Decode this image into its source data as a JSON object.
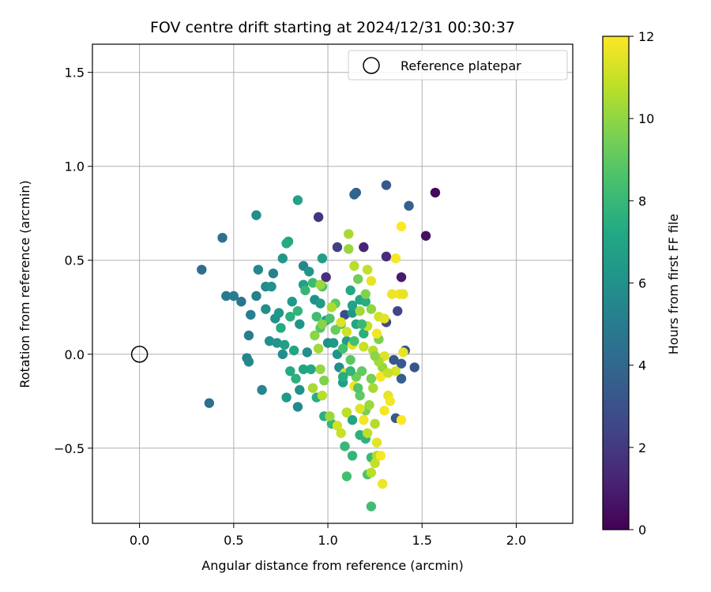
{
  "chart_data": {
    "type": "scatter",
    "title": "FOV centre drift starting at 2024/12/31 00:30:37",
    "xlabel": "Angular distance from reference (arcmin)",
    "ylabel": "Rotation from reference (arcmin)",
    "xlim": [
      -0.25,
      2.3
    ],
    "ylim": [
      -0.9,
      1.65
    ],
    "xticks": [
      0.0,
      0.5,
      1.0,
      1.5,
      2.0
    ],
    "xtick_labels": [
      "0.0",
      "0.5",
      "1.0",
      "1.5",
      "2.0"
    ],
    "yticks": [
      -0.5,
      0.0,
      0.5,
      1.0,
      1.5
    ],
    "ytick_labels": [
      "−0.5",
      "0.0",
      "0.5",
      "1.0",
      "1.5"
    ],
    "grid": true,
    "legend": {
      "position": "top-right",
      "entries": [
        "Reference platepar"
      ]
    },
    "reference_point": {
      "x": 0.0,
      "y": 0.0,
      "marker": "open-circle"
    },
    "colorbar": {
      "label": "Hours from first FF file",
      "range": [
        0,
        12
      ],
      "ticks": [
        0,
        2,
        4,
        6,
        8,
        10,
        12
      ],
      "tick_labels": [
        "0",
        "2",
        "4",
        "6",
        "8",
        "10",
        "12"
      ],
      "colormap": "viridis"
    },
    "points": [
      [
        1.57,
        0.86,
        0.2
      ],
      [
        1.52,
        0.63,
        0.5
      ],
      [
        1.19,
        0.57,
        1.2
      ],
      [
        0.95,
        0.73,
        1.8
      ],
      [
        1.05,
        0.57,
        2.2
      ],
      [
        1.31,
        0.52,
        1.5
      ],
      [
        1.39,
        0.41,
        0.9
      ],
      [
        0.99,
        0.41,
        1.6
      ],
      [
        1.37,
        0.23,
        2.5
      ],
      [
        1.09,
        0.21,
        2.8
      ],
      [
        1.31,
        0.17,
        2.6
      ],
      [
        1.41,
        0.02,
        3.0
      ],
      [
        1.35,
        -0.03,
        3.2
      ],
      [
        1.39,
        -0.05,
        3.4
      ],
      [
        1.46,
        -0.07,
        3.1
      ],
      [
        1.39,
        -0.13,
        3.6
      ],
      [
        1.36,
        -0.34,
        3.3
      ],
      [
        1.31,
        0.9,
        3.3
      ],
      [
        1.43,
        0.79,
        3.7
      ],
      [
        1.15,
        0.86,
        3.5
      ],
      [
        1.14,
        0.85,
        3.9
      ],
      [
        0.33,
        0.45,
        4.2
      ],
      [
        0.44,
        0.62,
        4.5
      ],
      [
        0.37,
        -0.26,
        4.4
      ],
      [
        0.46,
        0.31,
        4.9
      ],
      [
        0.5,
        0.31,
        5.0
      ],
      [
        0.54,
        0.28,
        4.7
      ],
      [
        0.59,
        0.21,
        5.1
      ],
      [
        0.62,
        0.31,
        5.2
      ],
      [
        0.58,
        0.1,
        5.0
      ],
      [
        0.57,
        -0.02,
        5.3
      ],
      [
        0.58,
        -0.04,
        5.6
      ],
      [
        0.65,
        -0.19,
        5.4
      ],
      [
        0.62,
        0.74,
        5.8
      ],
      [
        0.63,
        0.45,
        5.5
      ],
      [
        0.71,
        0.43,
        5.2
      ],
      [
        0.67,
        0.36,
        5.7
      ],
      [
        0.7,
        0.36,
        6.0
      ],
      [
        0.67,
        0.24,
        5.9
      ],
      [
        0.72,
        0.19,
        6.1
      ],
      [
        0.74,
        0.22,
        6.3
      ],
      [
        0.69,
        0.07,
        6.0
      ],
      [
        0.73,
        0.06,
        6.2
      ],
      [
        0.76,
        0.0,
        5.8
      ],
      [
        0.78,
        -0.23,
        6.4
      ],
      [
        0.84,
        -0.28,
        5.6
      ],
      [
        0.85,
        -0.19,
        6.0
      ],
      [
        0.87,
        0.47,
        5.5
      ],
      [
        0.9,
        0.44,
        6.2
      ],
      [
        0.81,
        0.28,
        6.5
      ],
      [
        0.85,
        0.16,
        6.1
      ],
      [
        0.89,
        0.01,
        5.9
      ],
      [
        0.87,
        0.37,
        6.8
      ],
      [
        0.76,
        0.51,
        6.3
      ],
      [
        0.79,
        0.6,
        7.0
      ],
      [
        0.78,
        0.59,
        7.3
      ],
      [
        0.84,
        0.82,
        6.9
      ],
      [
        0.97,
        0.51,
        6.6
      ],
      [
        0.93,
        0.29,
        6.0
      ],
      [
        0.96,
        0.27,
        6.5
      ],
      [
        0.99,
        0.18,
        6.2
      ],
      [
        1.0,
        0.06,
        5.9
      ],
      [
        1.03,
        0.06,
        6.4
      ],
      [
        1.05,
        0.0,
        6.1
      ],
      [
        1.06,
        -0.07,
        5.8
      ],
      [
        1.1,
        0.07,
        6.7
      ],
      [
        1.13,
        0.22,
        6.3
      ],
      [
        1.08,
        -0.15,
        6.6
      ],
      [
        1.13,
        0.26,
        6.9
      ],
      [
        1.12,
        0.34,
        7.2
      ],
      [
        1.17,
        0.29,
        7.0
      ],
      [
        1.2,
        0.28,
        7.4
      ],
      [
        1.15,
        0.16,
        7.1
      ],
      [
        1.19,
        0.11,
        7.5
      ],
      [
        1.1,
        -0.31,
        7.3
      ],
      [
        1.13,
        -0.35,
        7.0
      ],
      [
        1.17,
        -0.43,
        7.6
      ],
      [
        1.13,
        -0.54,
        7.8
      ],
      [
        1.09,
        -0.49,
        8.0
      ],
      [
        1.1,
        -0.65,
        8.4
      ],
      [
        1.2,
        -0.45,
        7.7
      ],
      [
        1.23,
        -0.55,
        8.1
      ],
      [
        1.21,
        -0.64,
        8.6
      ],
      [
        1.23,
        -0.81,
        8.3
      ],
      [
        0.98,
        -0.33,
        7.5
      ],
      [
        1.02,
        -0.37,
        7.9
      ],
      [
        0.94,
        -0.23,
        7.4
      ],
      [
        0.91,
        -0.08,
        7.2
      ],
      [
        0.87,
        -0.08,
        7.0
      ],
      [
        0.83,
        -0.13,
        7.6
      ],
      [
        0.8,
        -0.09,
        7.3
      ],
      [
        0.82,
        0.02,
        7.1
      ],
      [
        0.77,
        0.05,
        6.8
      ],
      [
        0.75,
        0.14,
        7.3
      ],
      [
        0.8,
        0.2,
        7.5
      ],
      [
        0.84,
        0.23,
        7.8
      ],
      [
        0.88,
        0.34,
        7.9
      ],
      [
        0.92,
        0.38,
        8.2
      ],
      [
        0.97,
        0.36,
        8.6
      ],
      [
        0.94,
        0.2,
        8.3
      ],
      [
        0.96,
        0.14,
        8.8
      ],
      [
        1.01,
        0.19,
        8.5
      ],
      [
        1.04,
        0.27,
        9.0
      ],
      [
        1.07,
        0.16,
        8.7
      ],
      [
        1.04,
        0.13,
        9.2
      ],
      [
        1.08,
        0.03,
        8.4
      ],
      [
        1.12,
        -0.03,
        8.9
      ],
      [
        1.15,
        -0.12,
        9.3
      ],
      [
        1.17,
        -0.22,
        9.0
      ],
      [
        1.2,
        -0.3,
        9.5
      ],
      [
        1.16,
        0.4,
        9.4
      ],
      [
        1.2,
        0.32,
        9.7
      ],
      [
        1.23,
        0.24,
        10.0
      ],
      [
        1.27,
        0.08,
        9.6
      ],
      [
        1.29,
        -0.07,
        10.1
      ],
      [
        1.24,
        -0.18,
        10.4
      ],
      [
        1.22,
        -0.27,
        10.2
      ],
      [
        1.25,
        -0.37,
        10.6
      ],
      [
        1.21,
        -0.42,
        10.8
      ],
      [
        1.26,
        -0.54,
        10.5
      ],
      [
        1.25,
        -0.58,
        10.9
      ],
      [
        1.23,
        -0.63,
        10.7
      ],
      [
        1.11,
        0.64,
        10.4
      ],
      [
        1.11,
        0.56,
        10.1
      ],
      [
        1.14,
        0.47,
        10.7
      ],
      [
        1.21,
        0.45,
        10.9
      ],
      [
        1.17,
        0.23,
        10.3
      ],
      [
        1.21,
        0.15,
        10.9
      ],
      [
        1.24,
        0.02,
        10.6
      ],
      [
        1.19,
        0.04,
        11.0
      ],
      [
        0.96,
        0.37,
        10.2
      ],
      [
        0.97,
        0.16,
        9.8
      ],
      [
        0.93,
        0.1,
        9.9
      ],
      [
        0.95,
        0.03,
        10.3
      ],
      [
        0.96,
        -0.08,
        10.1
      ],
      [
        0.98,
        -0.14,
        9.7
      ],
      [
        0.92,
        -0.18,
        10.4
      ],
      [
        0.97,
        -0.22,
        10.7
      ],
      [
        1.01,
        -0.33,
        10.2
      ],
      [
        1.05,
        -0.38,
        11.2
      ],
      [
        1.1,
        -0.31,
        10.8
      ],
      [
        1.07,
        -0.42,
        11.0
      ],
      [
        1.02,
        0.25,
        10.5
      ],
      [
        1.07,
        0.17,
        11.4
      ],
      [
        1.1,
        0.12,
        11.1
      ],
      [
        1.13,
        0.05,
        11.5
      ],
      [
        1.09,
        -0.1,
        11.3
      ],
      [
        1.14,
        -0.17,
        11.7
      ],
      [
        1.17,
        -0.29,
        11.4
      ],
      [
        1.19,
        -0.35,
        11.8
      ],
      [
        1.23,
        0.39,
        11.6
      ],
      [
        1.27,
        0.2,
        11.2
      ],
      [
        1.3,
        0.19,
        11.5
      ],
      [
        1.26,
        0.11,
        11.8
      ],
      [
        1.3,
        -0.01,
        11.4
      ],
      [
        1.28,
        -0.12,
        11.9
      ],
      [
        1.32,
        -0.22,
        11.6
      ],
      [
        1.3,
        -0.3,
        11.8
      ],
      [
        1.26,
        -0.47,
        11.5
      ],
      [
        1.28,
        -0.54,
        11.9
      ],
      [
        1.29,
        -0.69,
        11.7
      ],
      [
        1.36,
        0.51,
        11.9
      ],
      [
        1.38,
        0.32,
        11.8
      ],
      [
        1.4,
        0.32,
        11.6
      ],
      [
        1.34,
        0.32,
        11.7
      ],
      [
        1.39,
        0.68,
        12.0
      ],
      [
        1.39,
        -0.35,
        12.0
      ],
      [
        1.33,
        -0.25,
        11.8
      ],
      [
        1.4,
        0.01,
        11.6
      ],
      [
        1.36,
        -0.09,
        11.3
      ],
      [
        1.32,
        -0.1,
        11.0
      ],
      [
        1.27,
        -0.04,
        10.4
      ],
      [
        1.25,
        -0.01,
        9.9
      ],
      [
        1.23,
        -0.13,
        9.5
      ],
      [
        1.18,
        -0.09,
        9.1
      ],
      [
        1.16,
        -0.18,
        8.7
      ],
      [
        1.14,
        0.07,
        8.4
      ],
      [
        1.18,
        0.16,
        8.0
      ],
      [
        1.12,
        -0.09,
        7.8
      ],
      [
        1.08,
        -0.12,
        7.4
      ]
    ]
  }
}
